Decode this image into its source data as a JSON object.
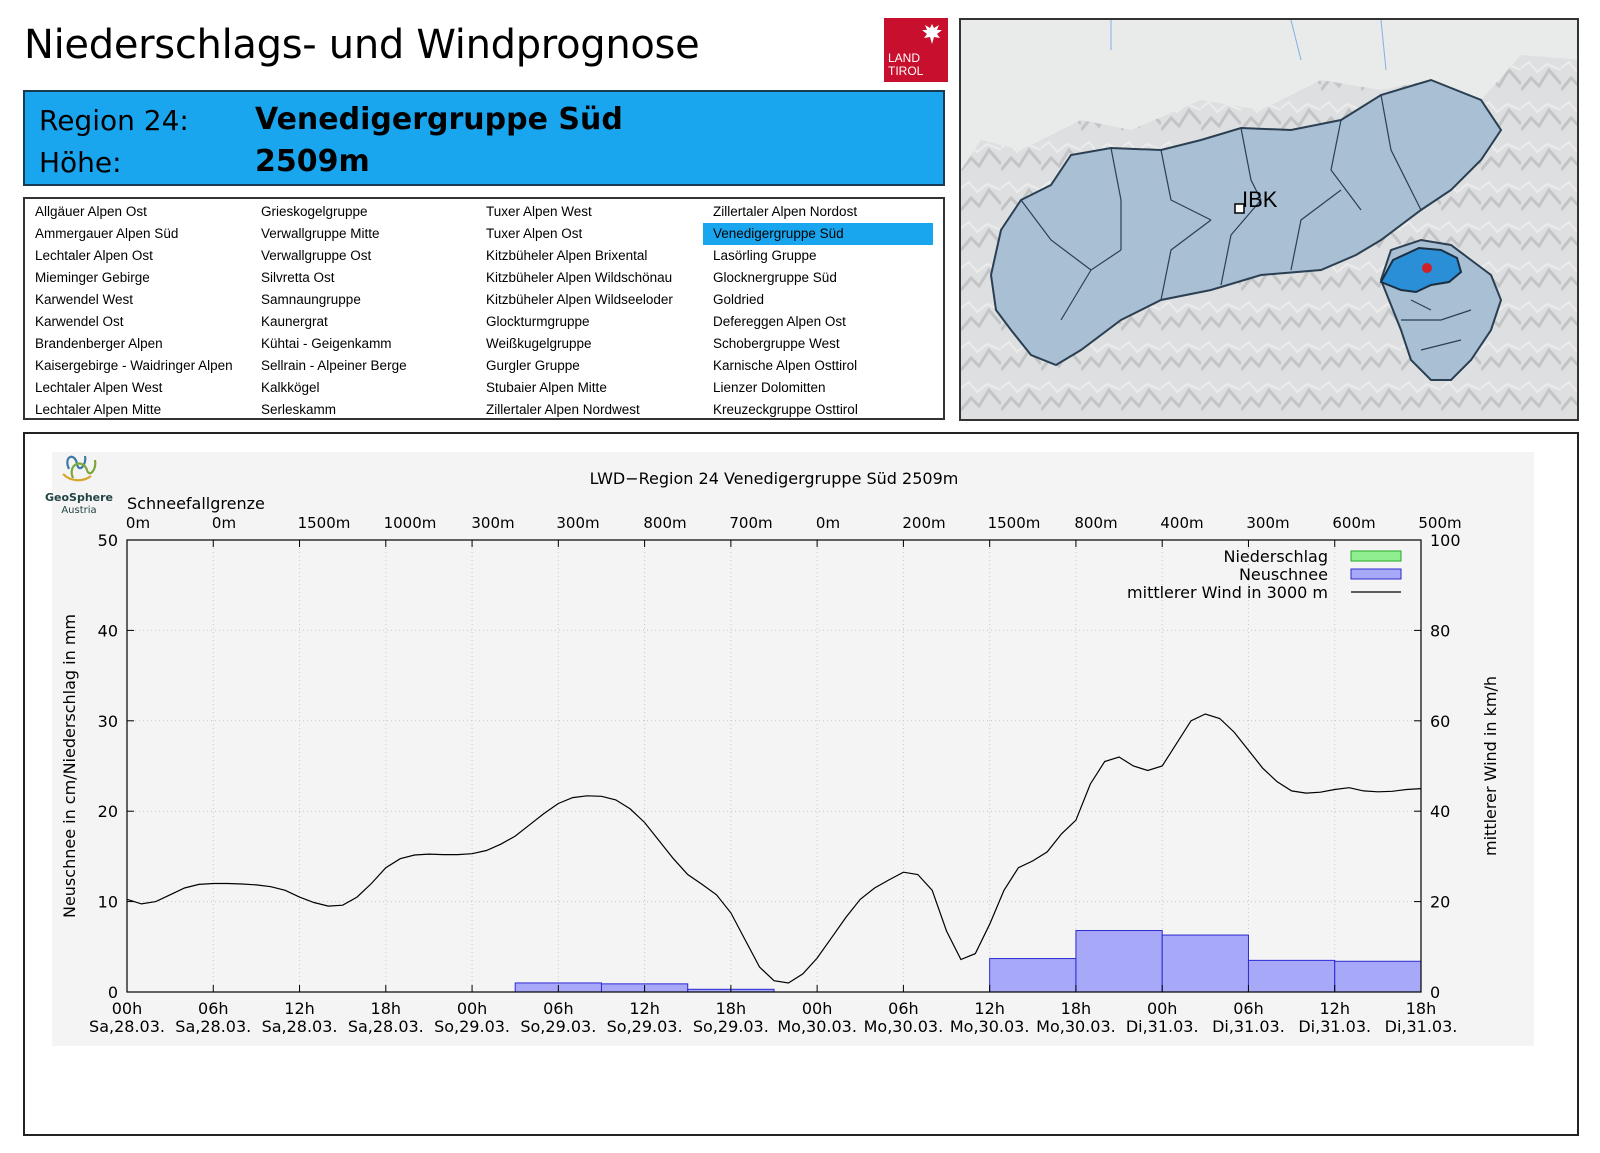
{
  "header": {
    "title": "Niederschlags- und Windprognose"
  },
  "logo": {
    "line1": "LAND",
    "line2": "TIROL",
    "color": "#c8102e"
  },
  "region": {
    "label_region": "Region 24:",
    "name": "Venedigergruppe Süd",
    "label_height": "Höhe:",
    "height": "2509m"
  },
  "region_list": {
    "columns": [
      [
        "Allgäuer Alpen Ost",
        "Ammergauer Alpen Süd",
        "Lechtaler Alpen Ost",
        "Mieminger Gebirge",
        "Karwendel West",
        "Karwendel Ost",
        "Brandenberger Alpen",
        "Kaisergebirge - Waidringer Alpen",
        "Lechtaler Alpen West",
        "Lechtaler Alpen Mitte"
      ],
      [
        "Grieskogelgruppe",
        "Verwallgruppe Mitte",
        "Verwallgruppe Ost",
        "Silvretta Ost",
        "Samnaungruppe",
        "Kaunergrat",
        "Kühtai - Geigenkamm",
        "Sellrain - Alpeiner Berge",
        "Kalkkögel",
        "Serleskamm"
      ],
      [
        "Tuxer Alpen West",
        "Tuxer Alpen Ost",
        "Kitzbüheler Alpen Brixental",
        "Kitzbüheler Alpen Wildschönau",
        "Kitzbüheler Alpen Wildseeloder",
        "Glockturmgruppe",
        "Weißkugelgruppe",
        "Gurgler Gruppe",
        "Stubaier Alpen Mitte",
        "Zillertaler Alpen Nordwest"
      ],
      [
        "Zillertaler Alpen Nordost",
        "Venedigergruppe Süd",
        "Lasörling Gruppe",
        "Glocknergruppe Süd",
        "Goldried",
        "Defereggen Alpen Ost",
        "Schobergruppe West",
        "Karnische Alpen Osttirol",
        "Lienzer Dolomitten",
        "Kreuzeckgruppe Osttirol"
      ]
    ],
    "selected": "Venedigergruppe Süd",
    "highlight_color": "#1aa6ef"
  },
  "map": {
    "city_label": "IBK",
    "region_color": "#2a8fd6",
    "marker_color": "#d0202a"
  },
  "chart_data": {
    "type": "bar+line",
    "title": "LWD−Region 24 Venedigergruppe Süd 2509m",
    "brand_line1": "GeoSphere",
    "brand_line2": "Austria",
    "snowline_label": "Schneefallgrenze",
    "snowline_values": [
      "0m",
      "0m",
      "1500m",
      "1000m",
      "300m",
      "300m",
      "800m",
      "700m",
      "0m",
      "200m",
      "1500m",
      "800m",
      "400m",
      "300m",
      "600m",
      "500m"
    ],
    "ylabel_left": "Neuschnee in cm/Niederschlag in mm",
    "ylabel_right": "mittlerer Wind in km/h",
    "ylim_left": [
      0,
      50
    ],
    "ylim_right": [
      0,
      100
    ],
    "yticks_left": [
      "0",
      "10",
      "20",
      "30",
      "40",
      "50"
    ],
    "yticks_right": [
      "0",
      "20",
      "40",
      "60",
      "80",
      "100"
    ],
    "x_hours_range": [
      0,
      90
    ],
    "xticks": [
      {
        "time": "00h",
        "date": "Sa,28.03."
      },
      {
        "time": "06h",
        "date": "Sa,28.03."
      },
      {
        "time": "12h",
        "date": "Sa,28.03."
      },
      {
        "time": "18h",
        "date": "Sa,28.03."
      },
      {
        "time": "00h",
        "date": "So,29.03."
      },
      {
        "time": "06h",
        "date": "So,29.03."
      },
      {
        "time": "12h",
        "date": "So,29.03."
      },
      {
        "time": "18h",
        "date": "So,29.03."
      },
      {
        "time": "00h",
        "date": "Mo,30.03."
      },
      {
        "time": "06h",
        "date": "Mo,30.03."
      },
      {
        "time": "12h",
        "date": "Mo,30.03."
      },
      {
        "time": "18h",
        "date": "Mo,30.03."
      },
      {
        "time": "00h",
        "date": "Di,31.03."
      },
      {
        "time": "06h",
        "date": "Di,31.03."
      },
      {
        "time": "12h",
        "date": "Di,31.03."
      },
      {
        "time": "18h",
        "date": "Di,31.03."
      }
    ],
    "legend": [
      {
        "label": "Niederschlag",
        "color": "#90ee90"
      },
      {
        "label": "Neuschnee",
        "color": "#a8a8f8"
      },
      {
        "label": "mittlerer Wind in 3000 m",
        "color": "#000000"
      }
    ],
    "neuschnee_bars": [
      {
        "start": 27,
        "end": 33,
        "value": 1.0
      },
      {
        "start": 33,
        "end": 39,
        "value": 0.9
      },
      {
        "start": 39,
        "end": 45,
        "value": 0.3
      },
      {
        "start": 60,
        "end": 66,
        "value": 3.7
      },
      {
        "start": 66,
        "end": 72,
        "value": 6.8
      },
      {
        "start": 72,
        "end": 78,
        "value": 6.3
      },
      {
        "start": 78,
        "end": 84,
        "value": 3.5
      },
      {
        "start": 84,
        "end": 90,
        "value": 3.4
      }
    ],
    "wind_series": {
      "hours": [
        0,
        1,
        2,
        3,
        4,
        5,
        6,
        7,
        8,
        9,
        10,
        11,
        12,
        13,
        14,
        15,
        16,
        17,
        18,
        19,
        20,
        21,
        22,
        23,
        24,
        25,
        26,
        27,
        28,
        29,
        30,
        31,
        32,
        33,
        34,
        35,
        36,
        37,
        38,
        39,
        40,
        41,
        42,
        43,
        44,
        45,
        46,
        47,
        48,
        49,
        50,
        51,
        52,
        53,
        54,
        55,
        56,
        57,
        58,
        59,
        60,
        61,
        62,
        63,
        64,
        65,
        66,
        67,
        68,
        69,
        70,
        71,
        72,
        73,
        74,
        75,
        76,
        77,
        78,
        79,
        80,
        81,
        82,
        83,
        84,
        85,
        86,
        87,
        88,
        89,
        90
      ],
      "values": [
        20.5,
        19.5,
        20,
        21.5,
        23,
        23.8,
        24,
        24,
        23.9,
        23.7,
        23.3,
        22.5,
        21,
        19.8,
        19,
        19.2,
        21,
        24,
        27.5,
        29.5,
        30.3,
        30.5,
        30.4,
        30.4,
        30.6,
        31.3,
        32.7,
        34.5,
        37,
        39.5,
        41.7,
        43,
        43.4,
        43.3,
        42.5,
        40.5,
        37.5,
        33.5,
        29.5,
        26,
        23.8,
        21.5,
        17.5,
        11.5,
        5.5,
        2.5,
        2,
        4,
        7.5,
        12,
        16.5,
        20.5,
        23,
        24.8,
        26.5,
        26,
        22.5,
        13.5,
        7.2,
        8.5,
        15,
        22.5,
        27.5,
        29,
        31,
        35,
        38,
        46,
        51,
        52,
        50,
        49,
        50,
        55,
        60,
        61.5,
        60.5,
        57.5,
        53.5,
        49.5,
        46.5,
        44.5,
        44,
        44.2,
        44.8,
        45.2,
        44.5,
        44.3,
        44.4,
        44.8,
        45
      ]
    }
  }
}
